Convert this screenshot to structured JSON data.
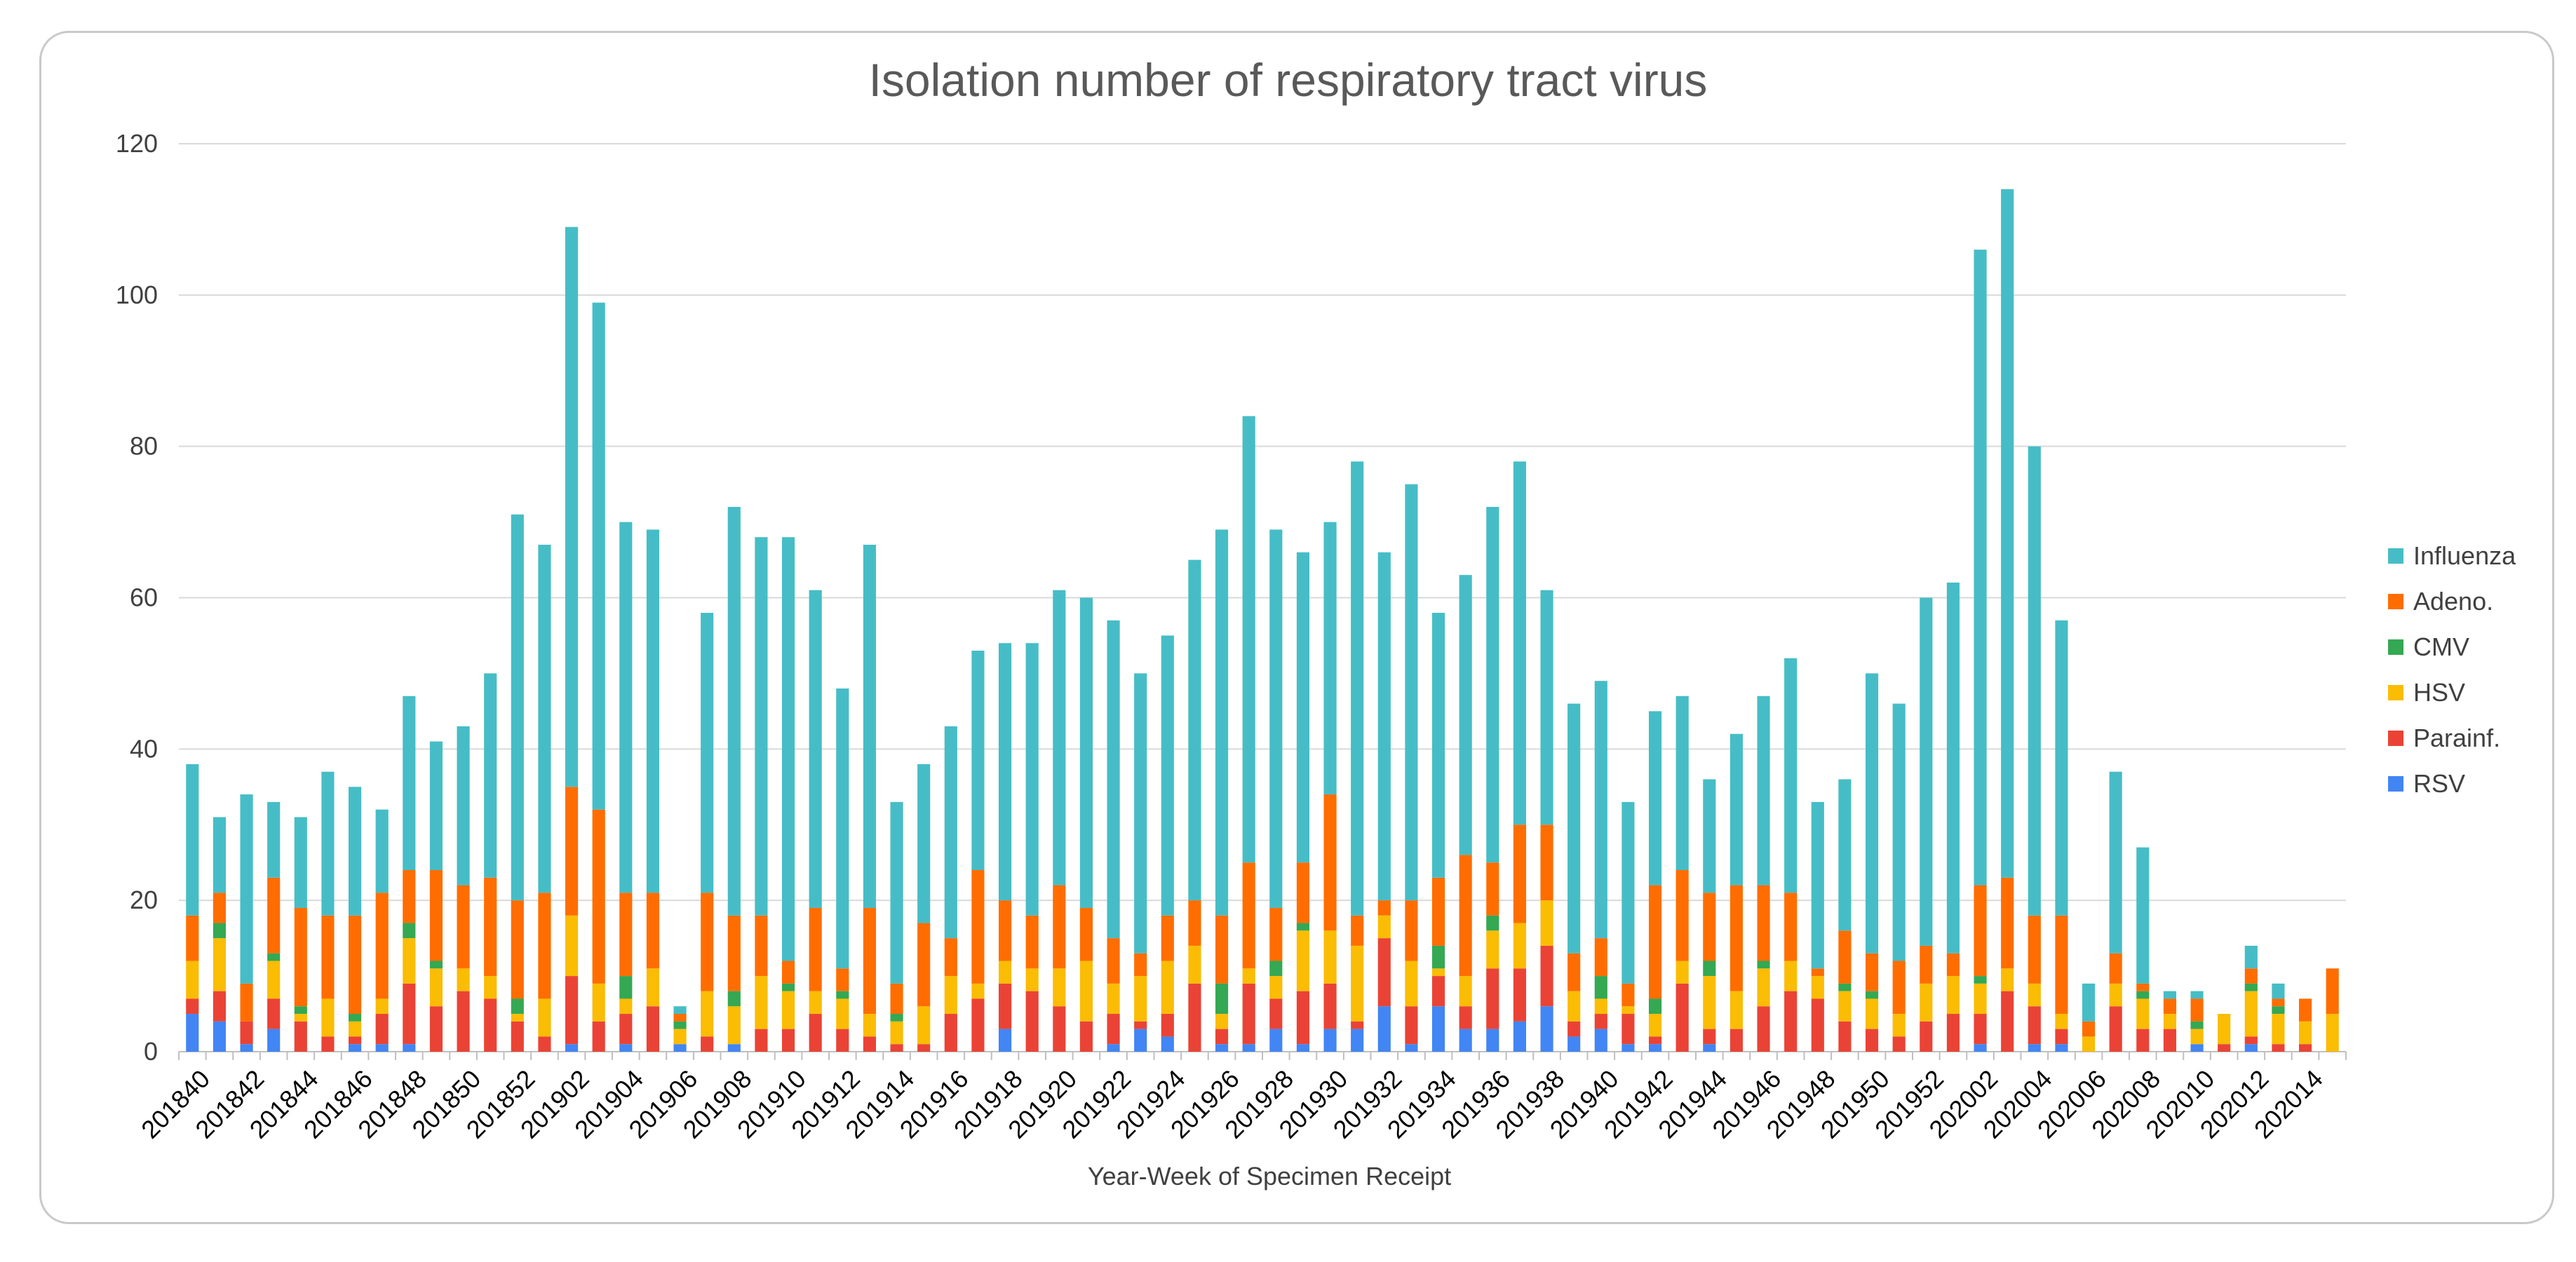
{
  "chart_data": {
    "type": "bar",
    "stacked": true,
    "title": "Isolation number of respiratory tract virus",
    "xlabel": "Year-Week of Specimen Receipt",
    "ylabel": "",
    "ylim": [
      0,
      120
    ],
    "yticks": [
      0,
      20,
      40,
      60,
      80,
      100,
      120
    ],
    "legend_position": "right",
    "categories": [
      "201840",
      "201841",
      "201842",
      "201843",
      "201844",
      "201845",
      "201846",
      "201847",
      "201848",
      "201849",
      "201850",
      "201851",
      "201852",
      "201901",
      "201902",
      "201903",
      "201904",
      "201905",
      "201906",
      "201907",
      "201908",
      "201909",
      "201910",
      "201911",
      "201912",
      "201913",
      "201914",
      "201915",
      "201916",
      "201917",
      "201918",
      "201919",
      "201920",
      "201921",
      "201922",
      "201923",
      "201924",
      "201925",
      "201926",
      "201927",
      "201928",
      "201929",
      "201930",
      "201931",
      "201932",
      "201933",
      "201934",
      "201935",
      "201936",
      "201937",
      "201938",
      "201939",
      "201940",
      "201941",
      "201942",
      "201943",
      "201944",
      "201945",
      "201946",
      "201947",
      "201948",
      "201949",
      "201950",
      "201951",
      "201952",
      "202001",
      "202002",
      "202003",
      "202004",
      "202005",
      "202006",
      "202007",
      "202008",
      "202009",
      "202010",
      "202011",
      "202012",
      "202013",
      "202014",
      "202015"
    ],
    "tick_labels": [
      "201840",
      "",
      "201842",
      "",
      "201844",
      "",
      "201846",
      "",
      "201848",
      "",
      "201850",
      "",
      "201852",
      "",
      "201902",
      "",
      "201904",
      "",
      "201906",
      "",
      "201908",
      "",
      "201910",
      "",
      "201912",
      "",
      "201914",
      "",
      "201916",
      "",
      "201918",
      "",
      "201920",
      "",
      "201922",
      "",
      "201924",
      "",
      "201926",
      "",
      "201928",
      "",
      "201930",
      "",
      "201932",
      "",
      "201934",
      "",
      "201936",
      "",
      "201938",
      "",
      "201940",
      "",
      "201942",
      "",
      "201944",
      "",
      "201946",
      "",
      "201948",
      "",
      "201950",
      "",
      "201952",
      "",
      "202002",
      "",
      "202004",
      "",
      "202006",
      "",
      "202008",
      "",
      "202010",
      "",
      "202012",
      "",
      "202014",
      ""
    ],
    "series": [
      {
        "name": "RSV",
        "color": "#4285f4",
        "values": [
          5,
          4,
          1,
          3,
          0,
          0,
          1,
          1,
          1,
          0,
          0,
          0,
          0,
          0,
          1,
          0,
          1,
          0,
          1,
          0,
          1,
          0,
          0,
          0,
          0,
          0,
          0,
          0,
          0,
          0,
          3,
          0,
          0,
          0,
          1,
          3,
          2,
          0,
          1,
          1,
          3,
          1,
          3,
          3,
          6,
          1,
          6,
          3,
          3,
          4,
          6,
          2,
          3,
          1,
          1,
          0,
          1,
          0,
          0,
          0,
          0,
          0,
          0,
          0,
          0,
          0,
          1,
          0,
          1,
          1,
          0,
          0,
          0,
          0,
          1,
          0,
          1,
          0,
          0,
          0
        ]
      },
      {
        "name": "Parainf.",
        "color": "#ea4335",
        "values": [
          2,
          4,
          3,
          4,
          4,
          2,
          1,
          4,
          8,
          6,
          8,
          7,
          4,
          2,
          9,
          4,
          4,
          6,
          0,
          2,
          0,
          3,
          3,
          5,
          3,
          2,
          1,
          1,
          5,
          7,
          6,
          8,
          6,
          4,
          4,
          1,
          3,
          9,
          2,
          8,
          4,
          7,
          6,
          1,
          9,
          5,
          4,
          3,
          8,
          7,
          8,
          2,
          2,
          4,
          1,
          9,
          2,
          3,
          6,
          8,
          7,
          4,
          3,
          2,
          4,
          5,
          4,
          8,
          5,
          2,
          0,
          6,
          3,
          3,
          0,
          1,
          1,
          1,
          1,
          0
        ]
      },
      {
        "name": "HSV",
        "color": "#fbbc04",
        "values": [
          5,
          7,
          0,
          5,
          1,
          5,
          2,
          2,
          6,
          5,
          3,
          3,
          1,
          5,
          8,
          5,
          2,
          5,
          2,
          6,
          5,
          7,
          5,
          3,
          4,
          3,
          3,
          5,
          5,
          2,
          3,
          3,
          5,
          8,
          4,
          6,
          7,
          5,
          2,
          2,
          3,
          8,
          7,
          10,
          3,
          6,
          1,
          4,
          5,
          6,
          6,
          4,
          2,
          1,
          3,
          3,
          7,
          5,
          5,
          4,
          3,
          4,
          4,
          3,
          5,
          5,
          4,
          3,
          3,
          2,
          2,
          3,
          4,
          2,
          2,
          4,
          6,
          4,
          3,
          5
        ]
      },
      {
        "name": "CMV",
        "color": "#34a853",
        "values": [
          0,
          2,
          0,
          1,
          1,
          0,
          1,
          0,
          2,
          1,
          0,
          0,
          2,
          0,
          0,
          0,
          3,
          0,
          1,
          0,
          2,
          0,
          1,
          0,
          1,
          0,
          1,
          0,
          0,
          0,
          0,
          0,
          0,
          0,
          0,
          0,
          0,
          0,
          4,
          0,
          2,
          1,
          0,
          0,
          0,
          0,
          3,
          0,
          2,
          0,
          0,
          0,
          3,
          0,
          2,
          0,
          2,
          0,
          1,
          0,
          0,
          1,
          1,
          0,
          0,
          0,
          1,
          0,
          0,
          0,
          0,
          0,
          1,
          0,
          1,
          0,
          1,
          1,
          0,
          0
        ]
      },
      {
        "name": "Adeno.",
        "color": "#ff6d01",
        "values": [
          6,
          4,
          5,
          10,
          13,
          11,
          13,
          14,
          7,
          12,
          11,
          13,
          13,
          14,
          17,
          23,
          11,
          10,
          1,
          13,
          10,
          8,
          3,
          11,
          3,
          14,
          4,
          11,
          5,
          15,
          8,
          7,
          11,
          7,
          6,
          3,
          6,
          6,
          9,
          14,
          7,
          8,
          18,
          4,
          2,
          8,
          9,
          16,
          7,
          13,
          10,
          5,
          5,
          3,
          15,
          12,
          9,
          14,
          10,
          9,
          1,
          7,
          5,
          7,
          5,
          3,
          12,
          12,
          9,
          13,
          2,
          4,
          1,
          2,
          3,
          0,
          2,
          1,
          3,
          6
        ]
      },
      {
        "name": "Influenza",
        "color": "#46bdc6",
        "values": [
          20,
          10,
          25,
          10,
          12,
          19,
          17,
          11,
          23,
          17,
          21,
          27,
          51,
          46,
          74,
          67,
          49,
          48,
          1,
          37,
          54,
          50,
          56,
          42,
          37,
          48,
          24,
          21,
          28,
          29,
          34,
          36,
          39,
          41,
          42,
          37,
          37,
          45,
          51,
          59,
          50,
          41,
          36,
          60,
          46,
          55,
          35,
          37,
          47,
          48,
          31,
          33,
          34,
          24,
          23,
          23,
          15,
          20,
          25,
          31,
          22,
          20,
          37,
          34,
          46,
          49,
          84,
          91,
          62,
          39,
          5,
          24,
          18,
          1,
          1,
          0,
          3,
          2,
          0,
          0
        ]
      }
    ]
  }
}
